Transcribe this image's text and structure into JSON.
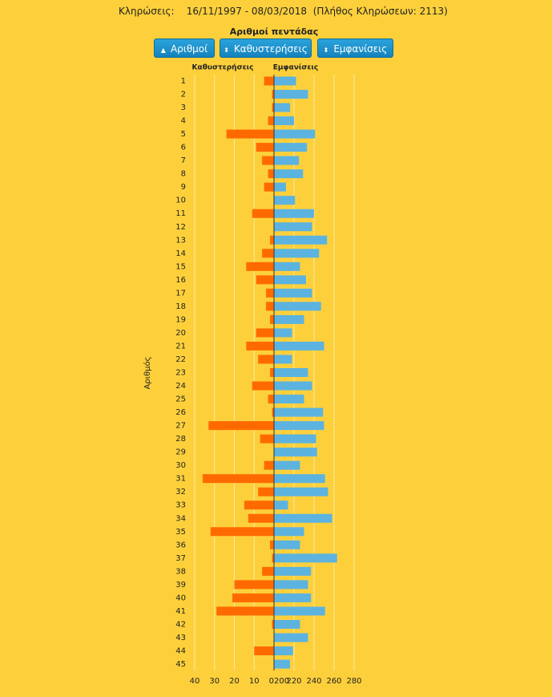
{
  "header": {
    "label": "Κληρώσεις:",
    "range": "16/11/1997 - 08/03/2018",
    "count": "(Πλήθος Κληρώσεων: 2113)"
  },
  "buttons": [
    "Αριθμοί",
    "Καθυστερήσεις",
    "Εμφανίσεις"
  ],
  "chart_data": {
    "type": "diverging-bar",
    "title": "Αριθμοί πεντάδας",
    "y_label": "Αριθμός",
    "categories": [
      "1",
      "2",
      "3",
      "4",
      "5",
      "6",
      "7",
      "8",
      "9",
      "10",
      "11",
      "12",
      "13",
      "14",
      "15",
      "16",
      "17",
      "18",
      "19",
      "20",
      "21",
      "22",
      "23",
      "24",
      "25",
      "26",
      "27",
      "28",
      "29",
      "30",
      "31",
      "32",
      "33",
      "34",
      "35",
      "36",
      "37",
      "38",
      "39",
      "40",
      "41",
      "42",
      "43",
      "44",
      "45"
    ],
    "series": [
      {
        "name": "Καθυστερήσεις",
        "color": "#ff6a00",
        "axis": "x",
        "values": [
          5,
          1,
          1,
          3,
          24,
          9,
          6,
          3,
          5,
          0,
          11,
          0,
          2,
          6,
          14,
          9,
          4,
          4,
          2,
          9,
          14,
          8,
          2,
          11,
          3,
          1,
          33,
          7,
          0,
          5,
          36,
          8,
          15,
          13,
          32,
          2,
          1,
          6,
          20,
          21,
          29,
          1,
          0,
          10,
          0
        ]
      },
      {
        "name": "Εμφανίσεις",
        "color": "#5cb3e0",
        "axis": "x2",
        "values": [
          222,
          234,
          216,
          220,
          241,
          233,
          225,
          229,
          212,
          221,
          240,
          238,
          253,
          245,
          226,
          232,
          238,
          247,
          230,
          218,
          250,
          218,
          234,
          238,
          230,
          249,
          250,
          242,
          243,
          226,
          251,
          254,
          214,
          258,
          230,
          226,
          263,
          237,
          234,
          237,
          251,
          226,
          234,
          219,
          216
        ]
      }
    ],
    "xlim": [
      0,
      40
    ],
    "xticks": [
      40,
      30,
      20,
      10,
      0
    ],
    "x2lim": [
      200,
      280
    ],
    "x2ticks": [
      200,
      220,
      240,
      260,
      280
    ],
    "grid": true
  }
}
